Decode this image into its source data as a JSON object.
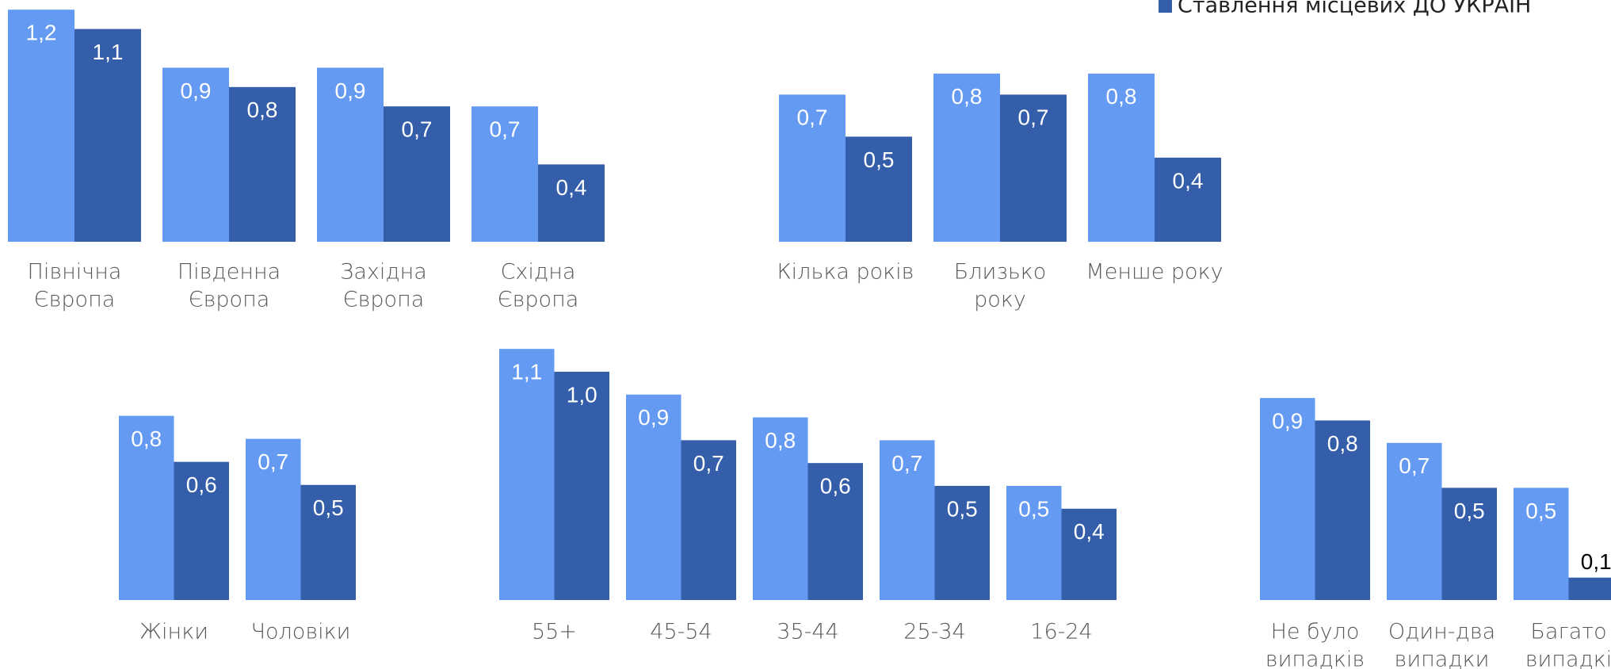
{
  "chart_data": [
    {
      "type": "bar",
      "categories": [
        [
          "Північна",
          "Європа"
        ],
        [
          "Південна",
          "Європа"
        ],
        [
          "Західна",
          "Європа"
        ],
        [
          "Східна",
          "Європа"
        ]
      ],
      "series": [
        {
          "color": "#659af3",
          "values": [
            1.2,
            0.9,
            0.9,
            0.7
          ],
          "value_labels": [
            "1,2",
            "0,9",
            "0,9",
            "0,7"
          ]
        },
        {
          "name": "Ставлення місцевих ДО УКРАЇН",
          "color": "#345ea9",
          "values": [
            1.1,
            0.8,
            0.7,
            0.4
          ],
          "value_labels": [
            "1,1",
            "0,8",
            "0,7",
            "0,4"
          ]
        }
      ],
      "ylim": [
        0,
        1.25
      ]
    },
    {
      "type": "bar",
      "categories": [
        [
          "Кілька років"
        ],
        [
          "Близько",
          "року"
        ],
        [
          "Менше року"
        ]
      ],
      "series": [
        {
          "color": "#659af3",
          "values": [
            0.7,
            0.8,
            0.8
          ],
          "value_labels": [
            "0,7",
            "0,8",
            "0,8"
          ]
        },
        {
          "color": "#345ea9",
          "values": [
            0.5,
            0.7,
            0.4
          ],
          "value_labels": [
            "0,5",
            "0,7",
            "0,4"
          ]
        }
      ],
      "ylim": [
        0,
        1.15
      ]
    },
    {
      "type": "bar",
      "categories": [
        [
          "Жінки"
        ],
        [
          "Чоловіки"
        ]
      ],
      "series": [
        {
          "color": "#659af3",
          "values": [
            0.8,
            0.7
          ],
          "value_labels": [
            "0,8",
            "0,7"
          ]
        },
        {
          "color": "#345ea9",
          "values": [
            0.6,
            0.5
          ],
          "value_labels": [
            "0,6",
            "0,5"
          ]
        }
      ],
      "ylim": [
        0,
        1.16
      ]
    },
    {
      "type": "bar",
      "categories": [
        [
          "55+"
        ],
        [
          "45-54"
        ],
        [
          "35-44"
        ],
        [
          "25-34"
        ],
        [
          "16-24"
        ]
      ],
      "series": [
        {
          "color": "#659af3",
          "values": [
            1.1,
            0.9,
            0.8,
            0.7,
            0.5
          ],
          "value_labels": [
            "1,1",
            "0,9",
            "0,8",
            "0,7",
            "0,5"
          ]
        },
        {
          "color": "#345ea9",
          "values": [
            1.0,
            0.7,
            0.6,
            0.5,
            0.4
          ],
          "value_labels": [
            "1,0",
            "0,7",
            "0,6",
            "0,5",
            "0,4"
          ]
        }
      ],
      "ylim": [
        0,
        1.17
      ]
    },
    {
      "type": "bar",
      "categories": [
        [
          "Не було",
          "випадків"
        ],
        [
          "Один-два",
          "випадки"
        ],
        [
          "Багато",
          "випадкі"
        ]
      ],
      "series": [
        {
          "color": "#659af3",
          "values": [
            0.9,
            0.7,
            0.5
          ],
          "value_labels": [
            "0,9",
            "0,7",
            "0,5"
          ]
        },
        {
          "color": "#345ea9",
          "values": [
            0.8,
            0.5,
            0.1
          ],
          "value_labels": [
            "0,8",
            "0,5",
            "0,1"
          ]
        }
      ],
      "ylim": [
        0,
        1.19
      ]
    }
  ]
}
